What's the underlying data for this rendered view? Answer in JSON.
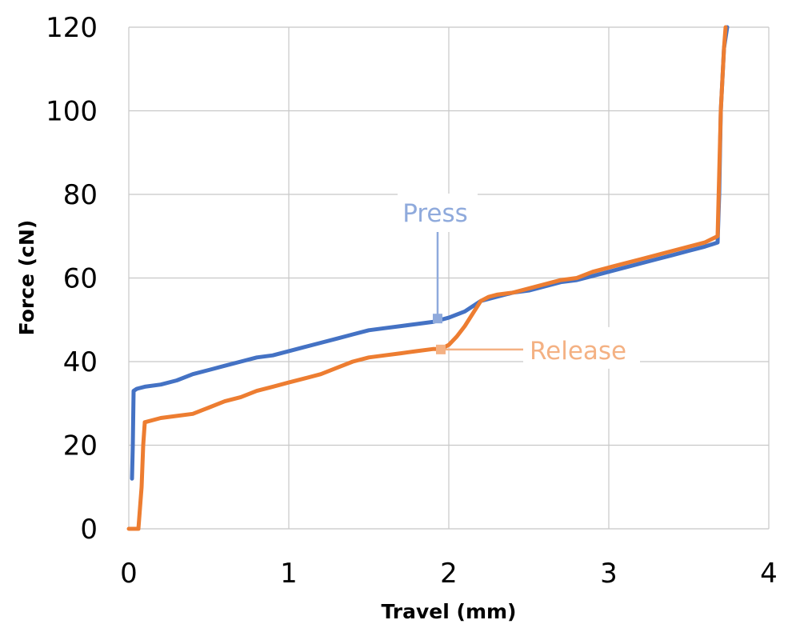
{
  "chart_data": {
    "type": "line",
    "title": "",
    "xlabel": "Travel (mm)",
    "ylabel": "Force (cN)",
    "xlim": [
      0,
      4
    ],
    "ylim": [
      0,
      120
    ],
    "xticks": [
      0,
      1,
      2,
      3,
      4
    ],
    "yticks": [
      0,
      20,
      40,
      60,
      80,
      100,
      120
    ],
    "xtick_labels": [
      "0",
      "1",
      "2",
      "3",
      "4"
    ],
    "ytick_labels": [
      "0",
      "20",
      "40",
      "60",
      "80",
      "100",
      "120"
    ],
    "grid": true,
    "legend": "none",
    "series": [
      {
        "name": "Press",
        "color": "#4472C4",
        "label_color": "#8FAADC",
        "x": [
          0.02,
          0.025,
          0.03,
          0.05,
          0.1,
          0.2,
          0.3,
          0.4,
          0.5,
          0.6,
          0.7,
          0.8,
          0.9,
          1.0,
          1.1,
          1.2,
          1.3,
          1.4,
          1.5,
          1.6,
          1.7,
          1.8,
          1.9,
          2.0,
          2.1,
          2.2,
          2.3,
          2.4,
          2.5,
          2.6,
          2.7,
          2.8,
          2.9,
          3.0,
          3.1,
          3.2,
          3.3,
          3.4,
          3.5,
          3.6,
          3.68,
          3.69,
          3.7,
          3.72,
          3.74
        ],
        "y": [
          12,
          20,
          33,
          33.5,
          34,
          34.5,
          35.5,
          37,
          38,
          39,
          40,
          41,
          41.5,
          42.5,
          43.5,
          44.5,
          45.5,
          46.5,
          47.5,
          48,
          48.5,
          49,
          49.5,
          50.5,
          52,
          54.5,
          55.5,
          56.5,
          57,
          58,
          59,
          59.5,
          60.5,
          61.5,
          62.5,
          63.5,
          64.5,
          65.5,
          66.5,
          67.5,
          68.5,
          80,
          100,
          115,
          120
        ]
      },
      {
        "name": "Release",
        "color": "#ED7D31",
        "label_color": "#F4B183",
        "x": [
          0.0,
          0.06,
          0.08,
          0.09,
          0.1,
          0.2,
          0.3,
          0.4,
          0.5,
          0.6,
          0.7,
          0.8,
          0.9,
          1.0,
          1.1,
          1.2,
          1.3,
          1.4,
          1.5,
          1.6,
          1.7,
          1.8,
          1.9,
          1.95,
          2.0,
          2.05,
          2.1,
          2.15,
          2.2,
          2.25,
          2.3,
          2.4,
          2.5,
          2.6,
          2.7,
          2.8,
          2.9,
          3.0,
          3.1,
          3.2,
          3.3,
          3.4,
          3.5,
          3.6,
          3.68,
          3.69,
          3.7,
          3.72,
          3.73
        ],
        "y": [
          0,
          0,
          10,
          20,
          25.5,
          26.5,
          27,
          27.5,
          29,
          30.5,
          31.5,
          33,
          34,
          35,
          36,
          37,
          38.5,
          40,
          41,
          41.5,
          42,
          42.5,
          43,
          43,
          44,
          46,
          48.5,
          51.5,
          54.5,
          55.5,
          56,
          56.5,
          57.5,
          58.5,
          59.5,
          60,
          61.5,
          62.5,
          63.5,
          64.5,
          65.5,
          66.5,
          67.5,
          68.5,
          70,
          85,
          100,
          115,
          120
        ]
      }
    ],
    "annotations": [
      {
        "text": "Press",
        "series": "Press",
        "x": 1.93,
        "y": 50.3
      },
      {
        "text": "Release",
        "series": "Release",
        "x": 1.95,
        "y": 42.9
      }
    ]
  }
}
